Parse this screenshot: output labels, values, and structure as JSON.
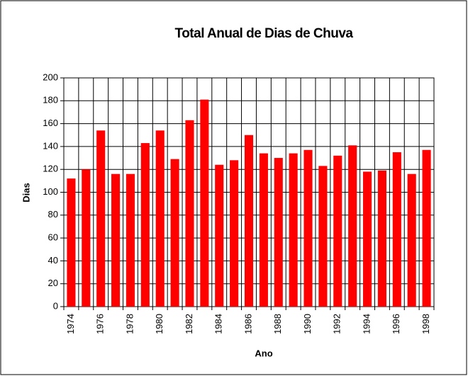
{
  "chart_data": {
    "type": "bar",
    "title": "Total Anual de Dias de Chuva",
    "x_label": "Ano",
    "y_label": "Dias",
    "categories": [
      "1974",
      null,
      "1976",
      null,
      "1978",
      null,
      "1980",
      null,
      "1982",
      null,
      "1984",
      null,
      "1986",
      null,
      "1988",
      null,
      "1990",
      null,
      "1992",
      null,
      "1994",
      null,
      "1996",
      null,
      "1998"
    ],
    "values": [
      112,
      120,
      154,
      116,
      116,
      143,
      154,
      129,
      163,
      181,
      124,
      128,
      150,
      134,
      130,
      134,
      137,
      123,
      132,
      141,
      118,
      119,
      135,
      116,
      137
    ],
    "color": "#ff0000",
    "ylim": [
      0,
      200
    ],
    "yticks": [
      0,
      20,
      40,
      60,
      80,
      100,
      120,
      140,
      160,
      180,
      200
    ],
    "grid": true
  }
}
